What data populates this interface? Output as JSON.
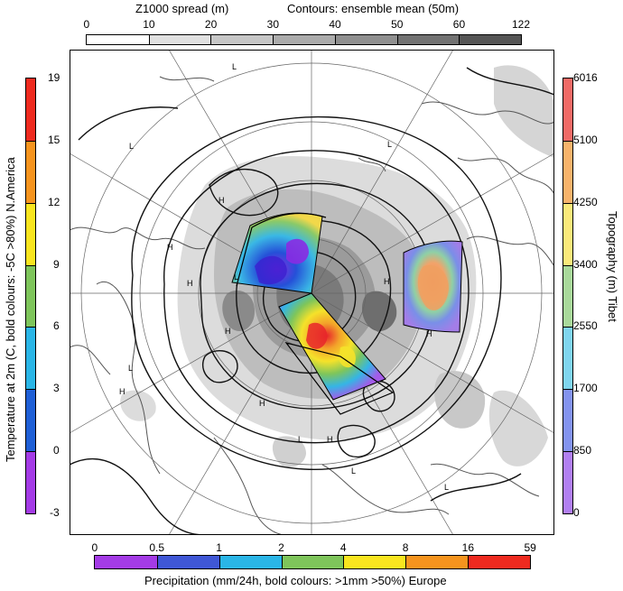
{
  "top_bar": {
    "title_left": "Z1000 spread (m)",
    "title_right": "Contours: ensemble mean (50m)",
    "ticks": [
      "0",
      "10",
      "20",
      "30",
      "40",
      "50",
      "60",
      "122"
    ],
    "colors": [
      "#ffffff",
      "#e0e0e0",
      "#c6c6c6",
      "#ababab",
      "#8f8f8f",
      "#727272",
      "#555555"
    ]
  },
  "left_bar": {
    "label": "Temperature at 2m (C, bold colours: -5C >80%) N.America",
    "ticks": [
      "19",
      "15",
      "12",
      "9",
      "6",
      "3",
      "0",
      "-3"
    ],
    "colors": [
      "#ee2a1f",
      "#f6941e",
      "#f9e51f",
      "#7ec55b",
      "#2ab6e7",
      "#1f5fd6",
      "#a43be6"
    ]
  },
  "right_bar": {
    "label": "Topography (m) Tibet",
    "ticks": [
      "6016",
      "5100",
      "4250",
      "3400",
      "2550",
      "1700",
      "850",
      "0"
    ],
    "colors": [
      "#ef6a66",
      "#f7b36b",
      "#fae97a",
      "#a9d99b",
      "#7fd5ee",
      "#8393ee",
      "#b17ff0"
    ]
  },
  "bottom_bar": {
    "label": "Precipitation (mm/24h, bold colours: >1mm >50%) Europe",
    "ticks": [
      "0",
      "0.5",
      "1",
      "2",
      "4",
      "8",
      "16",
      "59"
    ],
    "colors": [
      "#a43be6",
      "#3f57d6",
      "#2ab6e7",
      "#7ec55b",
      "#f9e51f",
      "#f6941e",
      "#ee2a1f"
    ]
  },
  "map": {
    "markers": [
      {
        "t": "L"
      },
      {
        "t": "L"
      },
      {
        "t": "L"
      },
      {
        "t": "L"
      },
      {
        "t": "L"
      },
      {
        "t": "L"
      },
      {
        "t": "L"
      },
      {
        "t": "L"
      },
      {
        "t": "H"
      },
      {
        "t": "H"
      },
      {
        "t": "H"
      },
      {
        "t": "H"
      },
      {
        "t": "H"
      },
      {
        "t": "H"
      },
      {
        "t": "H"
      },
      {
        "t": "H"
      },
      {
        "t": "H"
      }
    ]
  }
}
